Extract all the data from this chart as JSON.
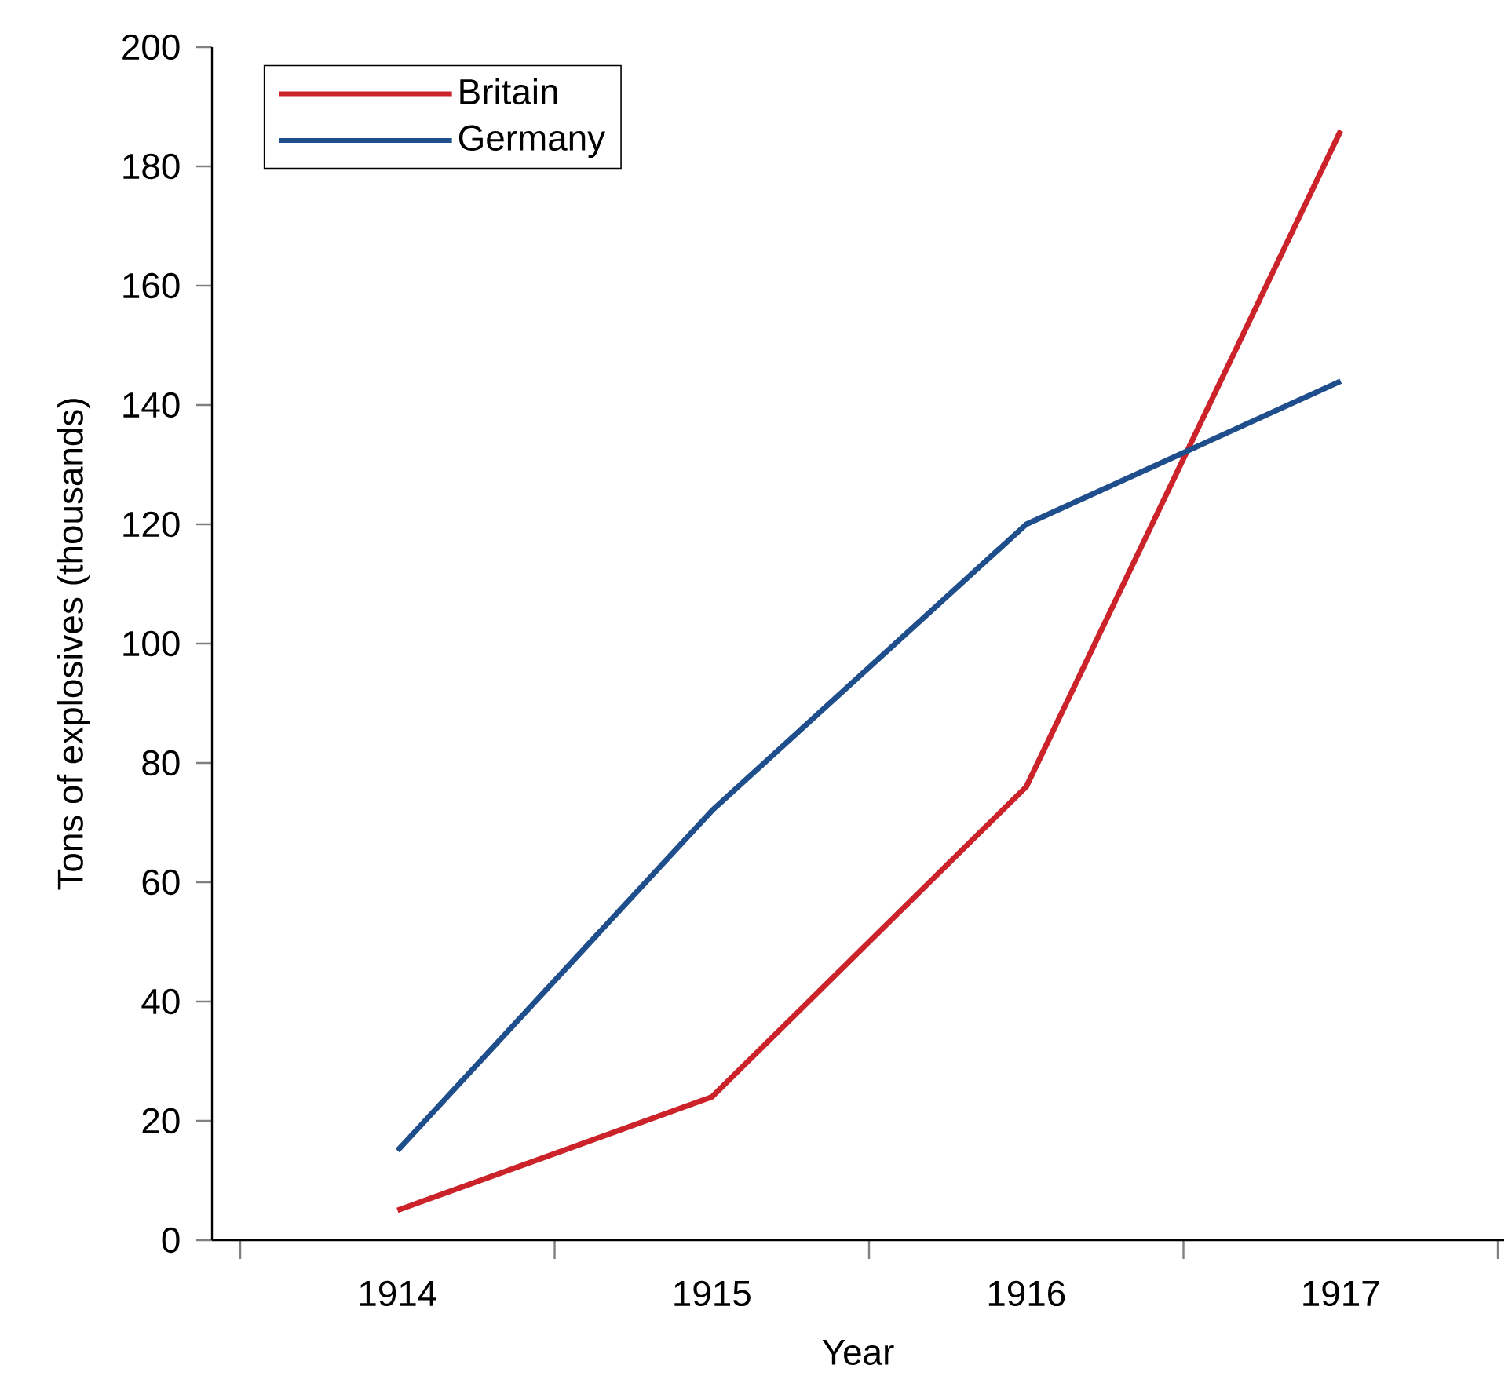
{
  "chart_data": {
    "type": "line",
    "xlabel": "Year",
    "ylabel": "Tons of explosives (thousands)",
    "categories": [
      "1914",
      "1915",
      "1916",
      "1917"
    ],
    "series": [
      {
        "name": "Britain",
        "color": "#cc2229",
        "values": [
          5,
          24,
          76,
          186
        ]
      },
      {
        "name": "Germany",
        "color": "#1f4e8c",
        "values": [
          15,
          72,
          120,
          144
        ]
      }
    ],
    "ylim": [
      0,
      200
    ],
    "yticks": [
      0,
      20,
      40,
      60,
      80,
      100,
      120,
      140,
      160,
      180,
      200
    ],
    "legend": "top left",
    "grid": false,
    "marker": "none",
    "line_style": "solid"
  }
}
